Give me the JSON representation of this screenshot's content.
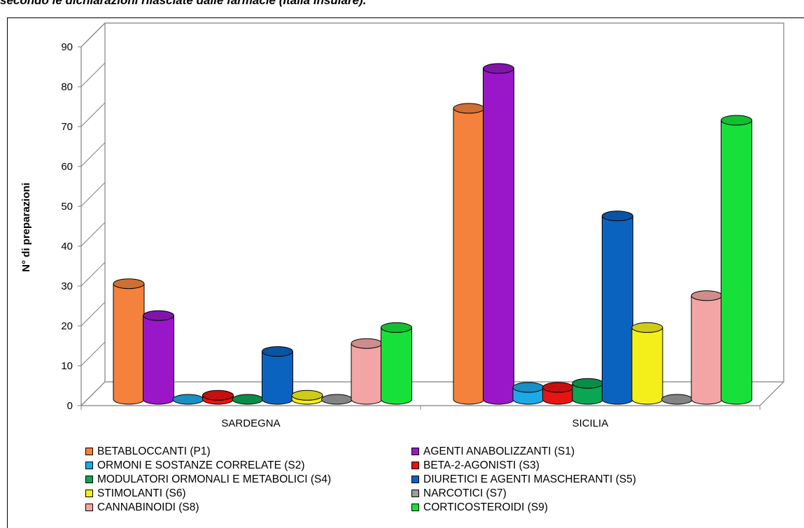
{
  "header": {
    "text": "secondo le dichiarazioni rilasciate dalle farmacie (Italia insulare)."
  },
  "chart_data": {
    "type": "bar",
    "title": "",
    "xlabel": "",
    "ylabel": "N° di preparazioni",
    "ylim": [
      0,
      90
    ],
    "yticks": [
      0,
      10,
      20,
      30,
      40,
      50,
      60,
      70,
      80,
      90
    ],
    "categories": [
      "SARDEGNA",
      "SICILIA"
    ],
    "legend_position": "bottom",
    "series": [
      {
        "name": "BETABLOCCANTI (P1)",
        "color": "#f5823c",
        "values": [
          29,
          73
        ]
      },
      {
        "name": "AGENTI ANABOLIZZANTI (S1)",
        "color": "#9a17c9",
        "values": [
          21,
          83
        ]
      },
      {
        "name": "ORMONI E SOSTANZE CORRELATE (S2)",
        "color": "#1da9e6",
        "values": [
          0,
          3
        ]
      },
      {
        "name": "BETA-2-AGONISTI (S3)",
        "color": "#e81313",
        "values": [
          1,
          3
        ]
      },
      {
        "name": "MODULATORI ORMONALI E METABOLICI (S4)",
        "color": "#0ba653",
        "values": [
          0,
          4
        ]
      },
      {
        "name": "DIURETICI E AGENTI MASCHERANTI (S5)",
        "color": "#0b63c0",
        "values": [
          12,
          46
        ]
      },
      {
        "name": "STIMOLANTI (S6)",
        "color": "#f4ef1b",
        "values": [
          1,
          18
        ]
      },
      {
        "name": "NARCOTICI (S7)",
        "color": "#9b9b9b",
        "values": [
          0,
          0
        ]
      },
      {
        "name": "CANNABINOIDI (S8)",
        "color": "#f3a5a5",
        "values": [
          14,
          26
        ]
      },
      {
        "name": "CORTICOSTEROIDI (S9)",
        "color": "#18e03b",
        "values": [
          18,
          70
        ]
      }
    ]
  }
}
